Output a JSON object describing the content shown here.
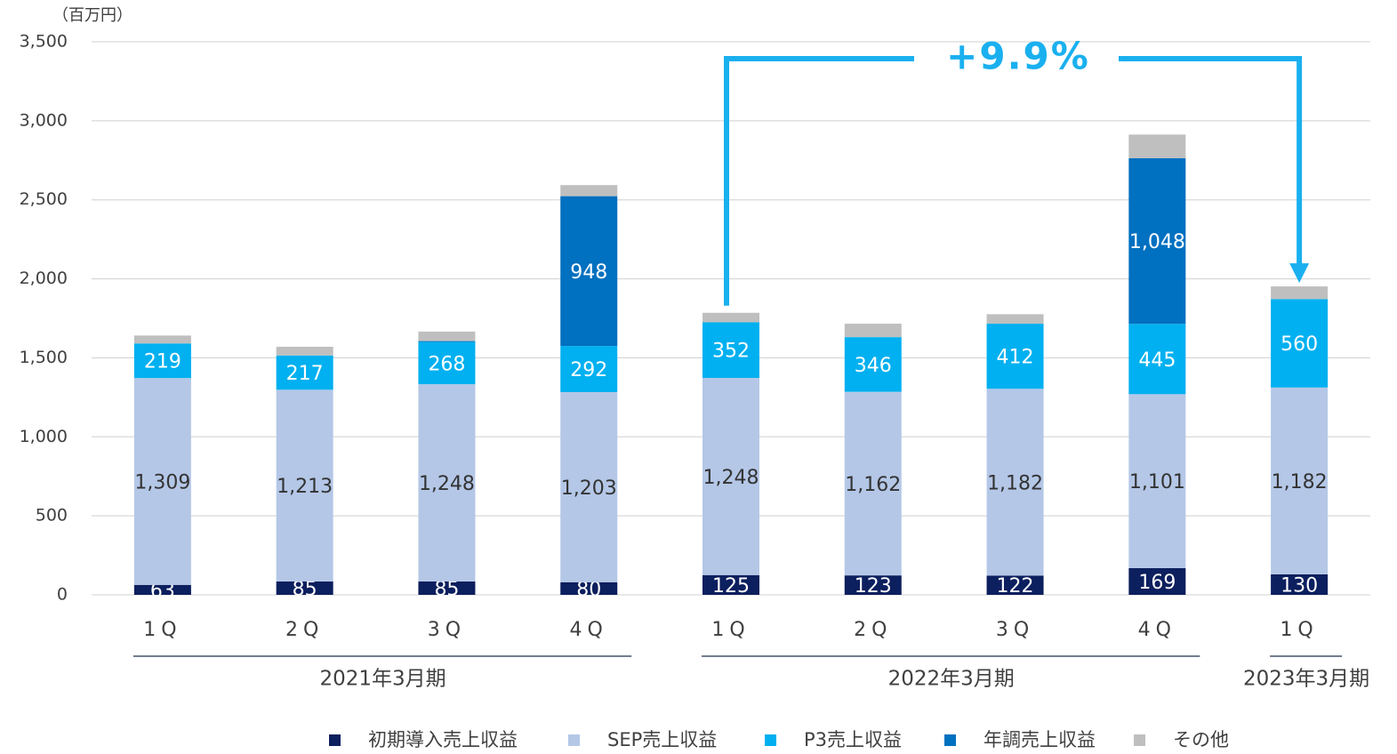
{
  "chart_data": {
    "type": "stacked_bar",
    "unit_label": "（百万円）",
    "annotation": "+9.9%",
    "categories": [
      "1Q",
      "2Q",
      "3Q",
      "4Q",
      "1Q",
      "2Q",
      "3Q",
      "4Q",
      "1Q"
    ],
    "groups": [
      {
        "label": "2021年3月期",
        "span": 4
      },
      {
        "label": "2022年3月期",
        "span": 4
      },
      {
        "label": "2023年3月期",
        "span": 1
      }
    ],
    "series": [
      {
        "name": "初期導入売上収益",
        "color": "#0c1f5e",
        "values": [
          63,
          85,
          85,
          80,
          125,
          123,
          122,
          169,
          130
        ]
      },
      {
        "name": "SEP売上収益",
        "color": "#b4c7e7",
        "values": [
          1309,
          1213,
          1248,
          1203,
          1248,
          1162,
          1182,
          1101,
          1182
        ],
        "value_labels": [
          "1,309",
          "1,213",
          "1,248",
          "1,203",
          "1,248",
          "1,162",
          "1,182",
          "1,101",
          "1,182"
        ]
      },
      {
        "name": "P3売上収益",
        "color": "#00b0f0",
        "values": [
          219,
          217,
          268,
          292,
          352,
          346,
          412,
          445,
          560
        ]
      },
      {
        "name": "年調売上収益",
        "color": "#0070c0",
        "values": [
          0,
          0,
          5,
          948,
          0,
          0,
          0,
          1048,
          0
        ],
        "value_labels": [
          null,
          null,
          null,
          "948",
          null,
          null,
          null,
          "1,048",
          null
        ]
      },
      {
        "name": "その他",
        "color": "#bfbfbf",
        "values": [
          50,
          55,
          60,
          70,
          60,
          85,
          60,
          150,
          80
        ]
      }
    ],
    "ylim": [
      0,
      3500
    ],
    "yticks": [
      0,
      500,
      {
        "value": 1000,
        "label": "1,000"
      },
      {
        "value": 1500,
        "label": "1,500"
      },
      {
        "value": 2000,
        "label": "2,000"
      },
      {
        "value": 2500,
        "label": "2,500"
      },
      {
        "value": 3000,
        "label": "3,000"
      },
      {
        "value": 3500,
        "label": "3,500"
      }
    ],
    "grid": true
  }
}
